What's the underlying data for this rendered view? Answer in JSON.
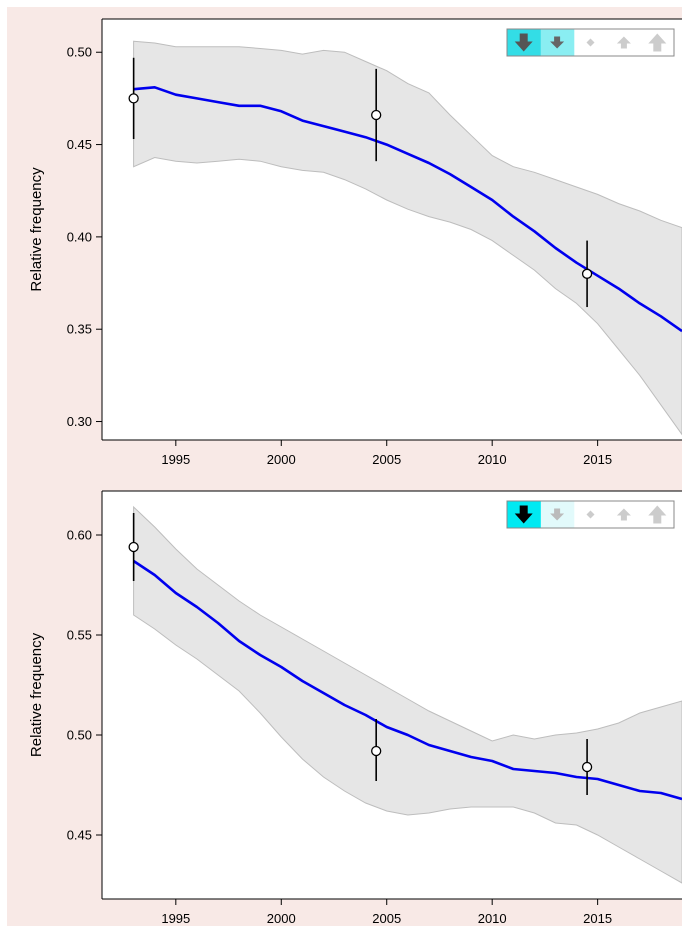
{
  "chart_data": [
    {
      "type": "line",
      "ylabel": "Relative frequency",
      "xlim": [
        1991.5,
        2019
      ],
      "ylim": [
        0.29,
        0.518
      ],
      "x_ticks": [
        1995,
        2000,
        2005,
        2010,
        2015
      ],
      "y_ticks": [
        0.3,
        0.35,
        0.4,
        0.45,
        0.5
      ],
      "trend": "down",
      "legend_placement": "top-right",
      "series": [
        {
          "kind": "smoothed-line",
          "color": "#0000ee",
          "x": [
            1993,
            1994,
            1995,
            1996,
            1997,
            1998,
            1999,
            2000,
            2001,
            2002,
            2003,
            2004,
            2005,
            2006,
            2007,
            2008,
            2009,
            2010,
            2011,
            2012,
            2013,
            2014,
            2015,
            2016,
            2017,
            2018,
            2019
          ],
          "y": [
            0.48,
            0.481,
            0.477,
            0.475,
            0.473,
            0.471,
            0.471,
            0.468,
            0.463,
            0.46,
            0.457,
            0.454,
            0.45,
            0.445,
            0.44,
            0.434,
            0.427,
            0.42,
            0.411,
            0.403,
            0.394,
            0.386,
            0.379,
            0.372,
            0.364,
            0.357,
            0.349
          ]
        },
        {
          "kind": "confidence-band",
          "color": "#e6e6e6",
          "x": [
            1993,
            1994,
            1995,
            1996,
            1997,
            1998,
            1999,
            2000,
            2001,
            2002,
            2003,
            2004,
            2005,
            2006,
            2007,
            2008,
            2009,
            2010,
            2011,
            2012,
            2013,
            2014,
            2015,
            2016,
            2017,
            2018,
            2019
          ],
          "upper": [
            0.506,
            0.505,
            0.503,
            0.503,
            0.503,
            0.503,
            0.502,
            0.501,
            0.499,
            0.501,
            0.5,
            0.495,
            0.49,
            0.483,
            0.478,
            0.466,
            0.455,
            0.444,
            0.438,
            0.435,
            0.431,
            0.427,
            0.423,
            0.418,
            0.414,
            0.409,
            0.405
          ],
          "lower": [
            0.438,
            0.443,
            0.441,
            0.44,
            0.441,
            0.442,
            0.441,
            0.438,
            0.436,
            0.435,
            0.431,
            0.426,
            0.42,
            0.415,
            0.411,
            0.408,
            0.404,
            0.398,
            0.39,
            0.382,
            0.372,
            0.364,
            0.353,
            0.339,
            0.325,
            0.309,
            0.293
          ]
        },
        {
          "kind": "points-with-errorbars",
          "x": [
            1993,
            2004.5,
            2014.5
          ],
          "y": [
            0.475,
            0.466,
            0.38
          ],
          "low": [
            0.453,
            0.441,
            0.362
          ],
          "high": [
            0.497,
            0.491,
            0.398
          ]
        }
      ]
    },
    {
      "type": "line",
      "ylabel": "Relative frequency",
      "xlim": [
        1991.5,
        2019
      ],
      "ylim": [
        0.418,
        0.622
      ],
      "x_ticks": [
        1995,
        2000,
        2005,
        2010,
        2015
      ],
      "y_ticks": [
        0.45,
        0.5,
        0.55,
        0.6
      ],
      "trend": "strong-down",
      "legend_placement": "top-right",
      "series": [
        {
          "kind": "smoothed-line",
          "color": "#0000ee",
          "x": [
            1993,
            1994,
            1995,
            1996,
            1997,
            1998,
            1999,
            2000,
            2001,
            2002,
            2003,
            2004,
            2005,
            2006,
            2007,
            2008,
            2009,
            2010,
            2011,
            2012,
            2013,
            2014,
            2015,
            2016,
            2017,
            2018,
            2019
          ],
          "y": [
            0.587,
            0.58,
            0.571,
            0.564,
            0.556,
            0.547,
            0.54,
            0.534,
            0.527,
            0.521,
            0.515,
            0.51,
            0.504,
            0.5,
            0.495,
            0.492,
            0.489,
            0.487,
            0.483,
            0.482,
            0.481,
            0.479,
            0.478,
            0.475,
            0.472,
            0.471,
            0.468
          ]
        },
        {
          "kind": "confidence-band",
          "color": "#e6e6e6",
          "x": [
            1993,
            1994,
            1995,
            1996,
            1997,
            1998,
            1999,
            2000,
            2001,
            2002,
            2003,
            2004,
            2005,
            2006,
            2007,
            2008,
            2009,
            2010,
            2011,
            2012,
            2013,
            2014,
            2015,
            2016,
            2017,
            2018,
            2019
          ],
          "upper": [
            0.614,
            0.604,
            0.593,
            0.583,
            0.575,
            0.567,
            0.56,
            0.554,
            0.548,
            0.542,
            0.536,
            0.53,
            0.524,
            0.518,
            0.512,
            0.507,
            0.502,
            0.497,
            0.5,
            0.498,
            0.5,
            0.501,
            0.503,
            0.506,
            0.511,
            0.514,
            0.517
          ],
          "lower": [
            0.56,
            0.553,
            0.545,
            0.538,
            0.53,
            0.522,
            0.511,
            0.499,
            0.488,
            0.479,
            0.472,
            0.466,
            0.462,
            0.46,
            0.461,
            0.463,
            0.464,
            0.464,
            0.464,
            0.461,
            0.456,
            0.455,
            0.45,
            0.444,
            0.438,
            0.432,
            0.426
          ]
        },
        {
          "kind": "points-with-errorbars",
          "x": [
            1993,
            2004.5,
            2014.5
          ],
          "y": [
            0.594,
            0.492,
            0.484
          ],
          "low": [
            0.577,
            0.477,
            0.47
          ],
          "high": [
            0.611,
            0.508,
            0.498
          ]
        }
      ]
    }
  ]
}
